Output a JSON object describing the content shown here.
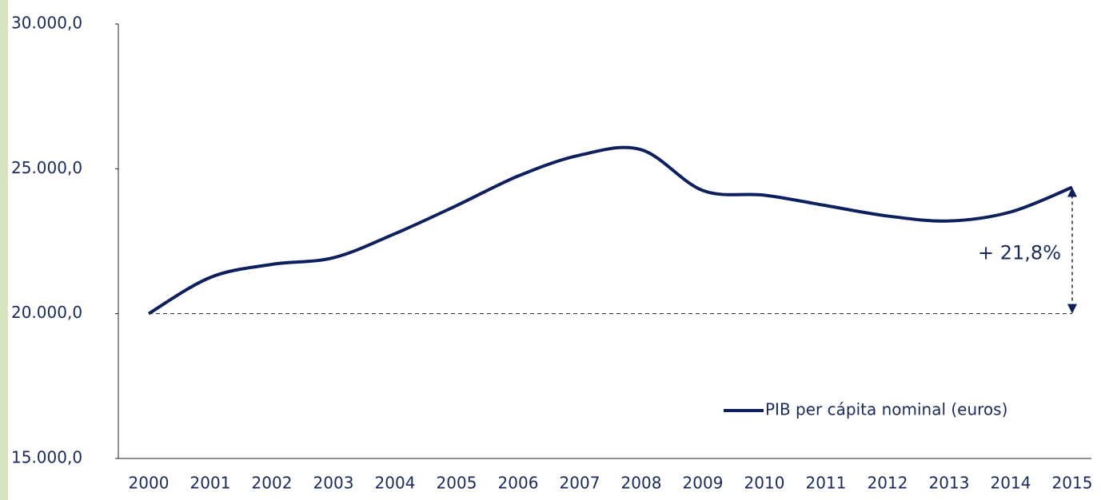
{
  "chart_data": {
    "type": "line",
    "categories": [
      "2000",
      "2001",
      "2002",
      "2003",
      "2004",
      "2005",
      "2006",
      "2007",
      "2008",
      "2009",
      "2010",
      "2011",
      "2012",
      "2013",
      "2014",
      "2015"
    ],
    "series": [
      {
        "name": "PIB per cápita nominal (euros)",
        "color": "#0d1f5c",
        "values": [
          20000,
          21250,
          21700,
          21930,
          22760,
          23730,
          24750,
          25470,
          25660,
          24250,
          24090,
          23730,
          23370,
          23200,
          23510,
          24360
        ]
      }
    ],
    "ylim": [
      15000,
      30000
    ],
    "yticks": [
      {
        "value": 15000,
        "label": "15.000,0"
      },
      {
        "value": 20000,
        "label": "20.000,0"
      },
      {
        "value": 25000,
        "label": "25.000,0"
      },
      {
        "value": 30000,
        "label": "30.000,0"
      }
    ],
    "annotation": "+ 21,8%",
    "legend": "lower right"
  }
}
